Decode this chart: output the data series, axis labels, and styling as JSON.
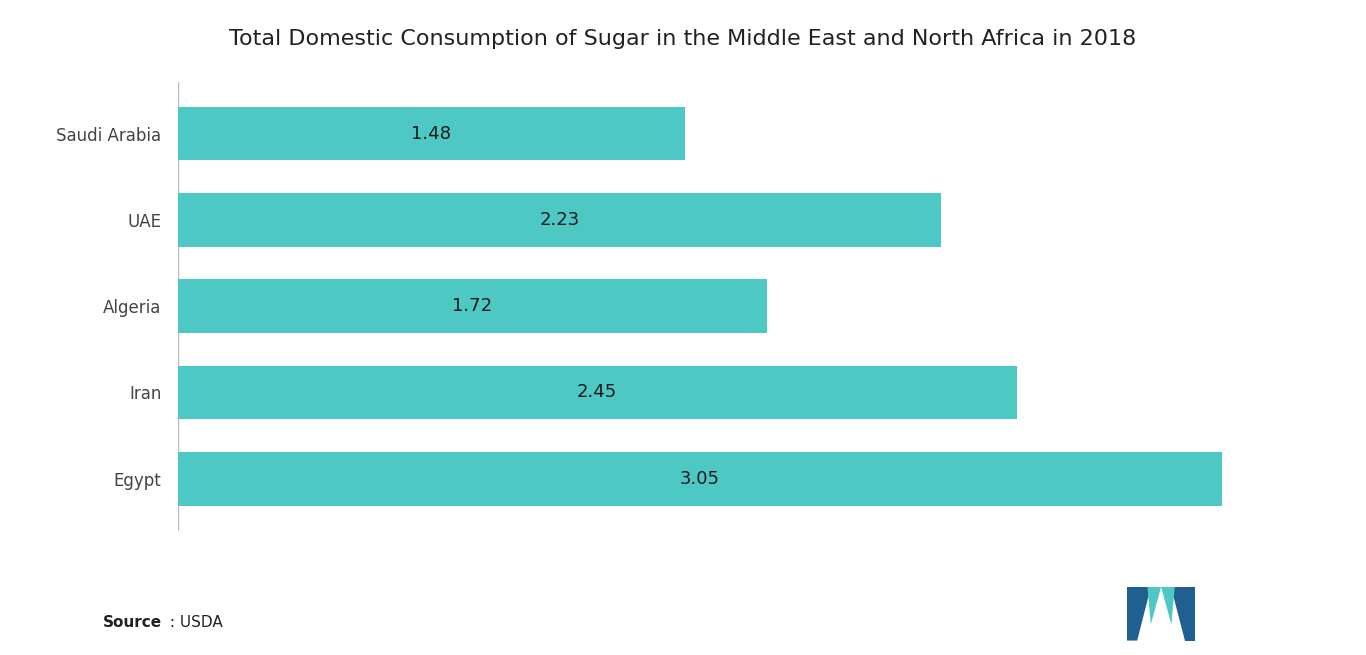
{
  "title": "Total Domestic Consumption of Sugar in the Middle East and North Africa in 2018",
  "categories": [
    "Egypt",
    "Iran",
    "Algeria",
    "UAE",
    "Saudi Arabia"
  ],
  "values": [
    3.05,
    2.45,
    1.72,
    2.23,
    1.48
  ],
  "bar_color": "#4DC8C4",
  "label_color": "#1a1a1a",
  "source_bold": "Source",
  "source_text": " : USDA",
  "title_fontsize": 16,
  "ytick_fontsize": 12,
  "bar_label_fontsize": 13,
  "xlim": [
    0,
    3.35
  ],
  "background_color": "#ffffff"
}
